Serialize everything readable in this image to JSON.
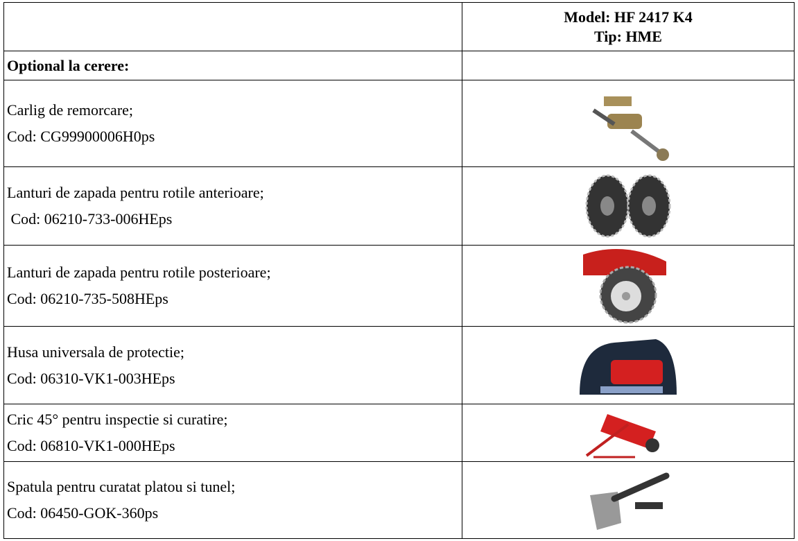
{
  "header": {
    "model": "Model: HF 2417 K4",
    "type": "Tip: HME"
  },
  "table": {
    "section": "Optional la cerere:",
    "rows": [
      {
        "name": "Carlig de remorcare;",
        "code": "Cod: CG99900006H0ps"
      },
      {
        "name": "Lanturi de zapada pentru rotile anterioare;",
        "code": " Cod: 06210-733-006HEps"
      },
      {
        "name": "Lanturi de zapada pentru rotile posterioare;",
        "code": "Cod: 06210-735-508HEps"
      },
      {
        "name": "Husa universala de protectie;",
        "code": "Cod: 06310-VK1-003HEps"
      },
      {
        "name": "Cric 45° pentru inspectie si curatire;",
        "code": "Cod: 06810-VK1-000HEps"
      },
      {
        "name": "Spatula pentru curatat platou si tunel;",
        "code": "Cod: 06450-GOK-360ps"
      }
    ]
  }
}
